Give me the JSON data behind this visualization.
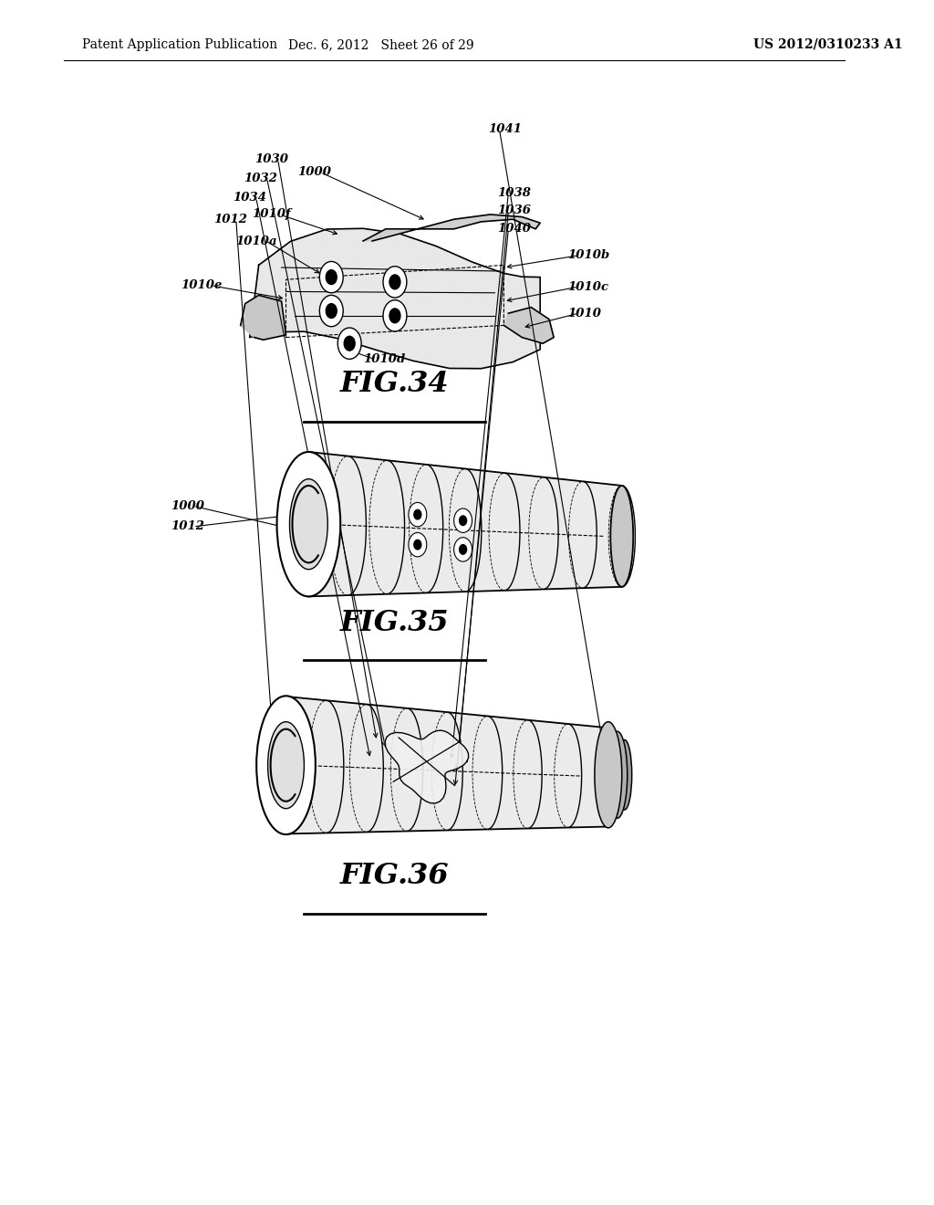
{
  "background_color": "#ffffff",
  "header_left": "Patent Application Publication",
  "header_mid": "Dec. 6, 2012   Sheet 26 of 29",
  "header_right": "US 2012/0310233 A1",
  "fig34_label": "FIG.34",
  "fig35_label": "FIG.35",
  "fig36_label": "FIG.36",
  "text_color": "#000000",
  "header_fontsize": 10,
  "annotation_fontsize": 9.5,
  "fig_label_fontsize": 23
}
